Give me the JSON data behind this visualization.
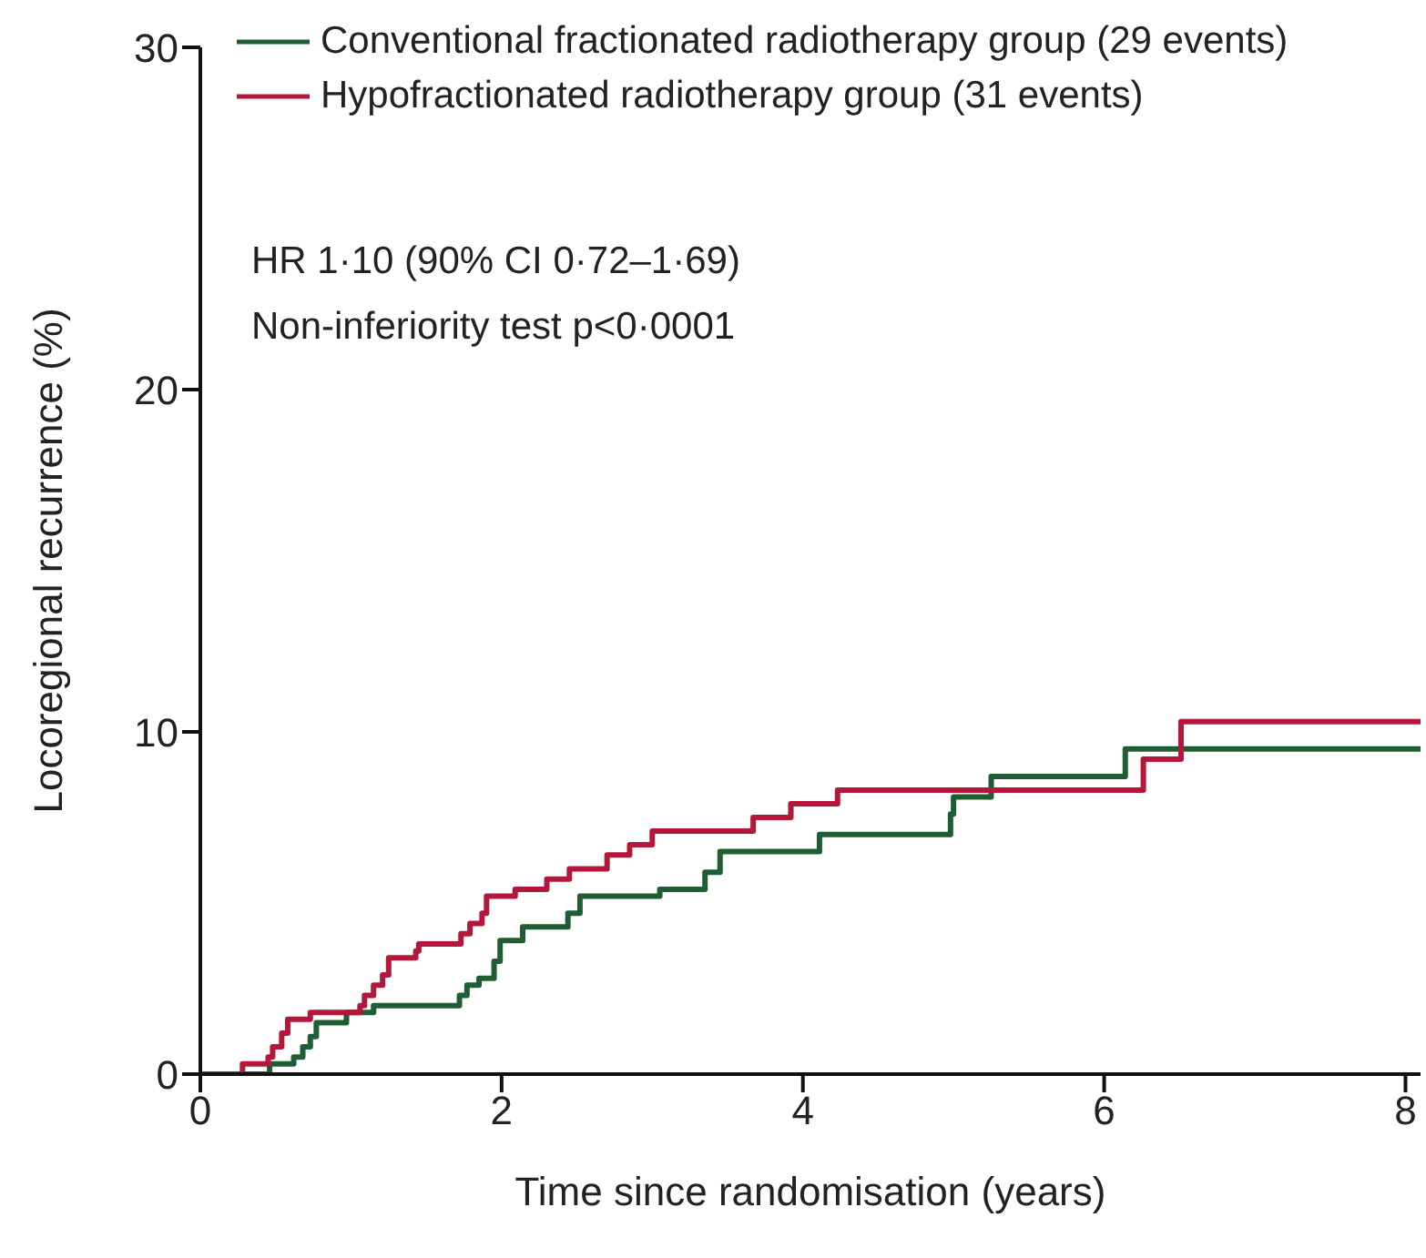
{
  "chart_data": {
    "type": "step",
    "xlabel": "Time since randomisation (years)",
    "ylabel": "Locoregional recurrence (%)",
    "xlim": [
      0,
      8.1
    ],
    "xticks": [
      0,
      2,
      4,
      6,
      8
    ],
    "ylim": [
      0,
      30
    ],
    "yticks": [
      0,
      10,
      20,
      30
    ],
    "grid": false,
    "legend": "top left",
    "line_style": "solid",
    "annotations": [
      "HR 1·10 (90% CI 0·72–1·69)",
      "Non-inferiority test p<0·0001"
    ],
    "series": [
      {
        "name": "Conventional fractionated radiotherapy group (29 events)",
        "color": "#1e5e32",
        "x": [
          0,
          0.46,
          0.62,
          0.68,
          0.73,
          0.77,
          0.97,
          1.15,
          1.72,
          1.77,
          1.85,
          1.95,
          1.99,
          2.14,
          2.44,
          2.52,
          3.05,
          3.35,
          3.45,
          4.11,
          4.98,
          5.0,
          5.25,
          6.14,
          8.1
        ],
        "values": [
          0,
          0.3,
          0.5,
          0.8,
          1.1,
          1.5,
          1.8,
          2.0,
          2.3,
          2.6,
          2.8,
          3.3,
          3.9,
          4.3,
          4.7,
          5.2,
          5.4,
          5.9,
          6.5,
          7.0,
          7.6,
          8.1,
          8.7,
          9.5,
          9.5
        ]
      },
      {
        "name": "Hypofractionated radiotherapy group (31 events)",
        "color": "#b5173b",
        "x": [
          0,
          0.28,
          0.45,
          0.48,
          0.54,
          0.58,
          0.73,
          1.06,
          1.09,
          1.15,
          1.21,
          1.25,
          1.43,
          1.45,
          1.73,
          1.79,
          1.87,
          1.9,
          2.09,
          2.3,
          2.45,
          2.7,
          2.85,
          3.0,
          3.67,
          3.92,
          4.23,
          6.26,
          6.51,
          8.1
        ],
        "values": [
          0,
          0.3,
          0.5,
          0.8,
          1.2,
          1.6,
          1.8,
          2.0,
          2.3,
          2.6,
          2.9,
          3.4,
          3.6,
          3.8,
          4.1,
          4.4,
          4.7,
          5.2,
          5.4,
          5.7,
          6.0,
          6.4,
          6.7,
          7.1,
          7.5,
          7.9,
          8.3,
          9.2,
          10.3,
          10.3
        ]
      }
    ]
  }
}
